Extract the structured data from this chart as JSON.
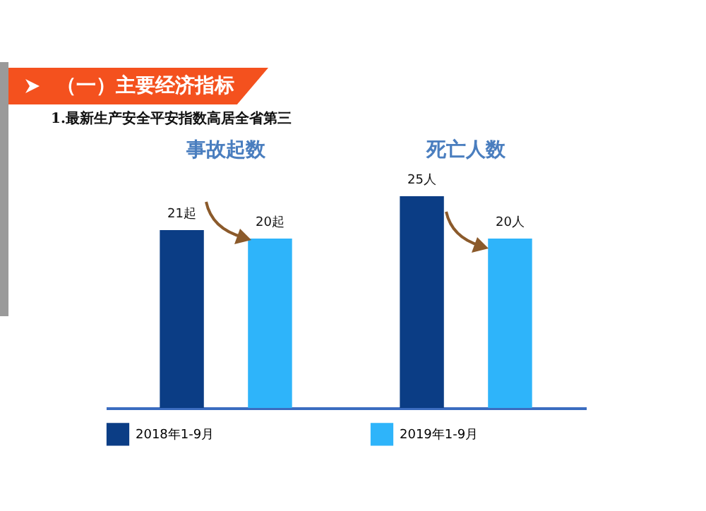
{
  "chart_data": {
    "type": "bar",
    "annotations": [
      "（一）主要经济指标",
      "1.最新生产安全平安指数高居全省第三"
    ],
    "categories": [
      "事故起数",
      "死亡人数"
    ],
    "legend": "bottom",
    "series": [
      {
        "name": "2018年1-9月",
        "color": "#0b3d85",
        "values": [
          21,
          25
        ],
        "value_labels": [
          "21起",
          "25人"
        ]
      },
      {
        "name": "2019年1-9月",
        "color": "#2eb4fa",
        "values": [
          20,
          20
        ],
        "value_labels": [
          "20起",
          "20人"
        ]
      }
    ]
  }
}
